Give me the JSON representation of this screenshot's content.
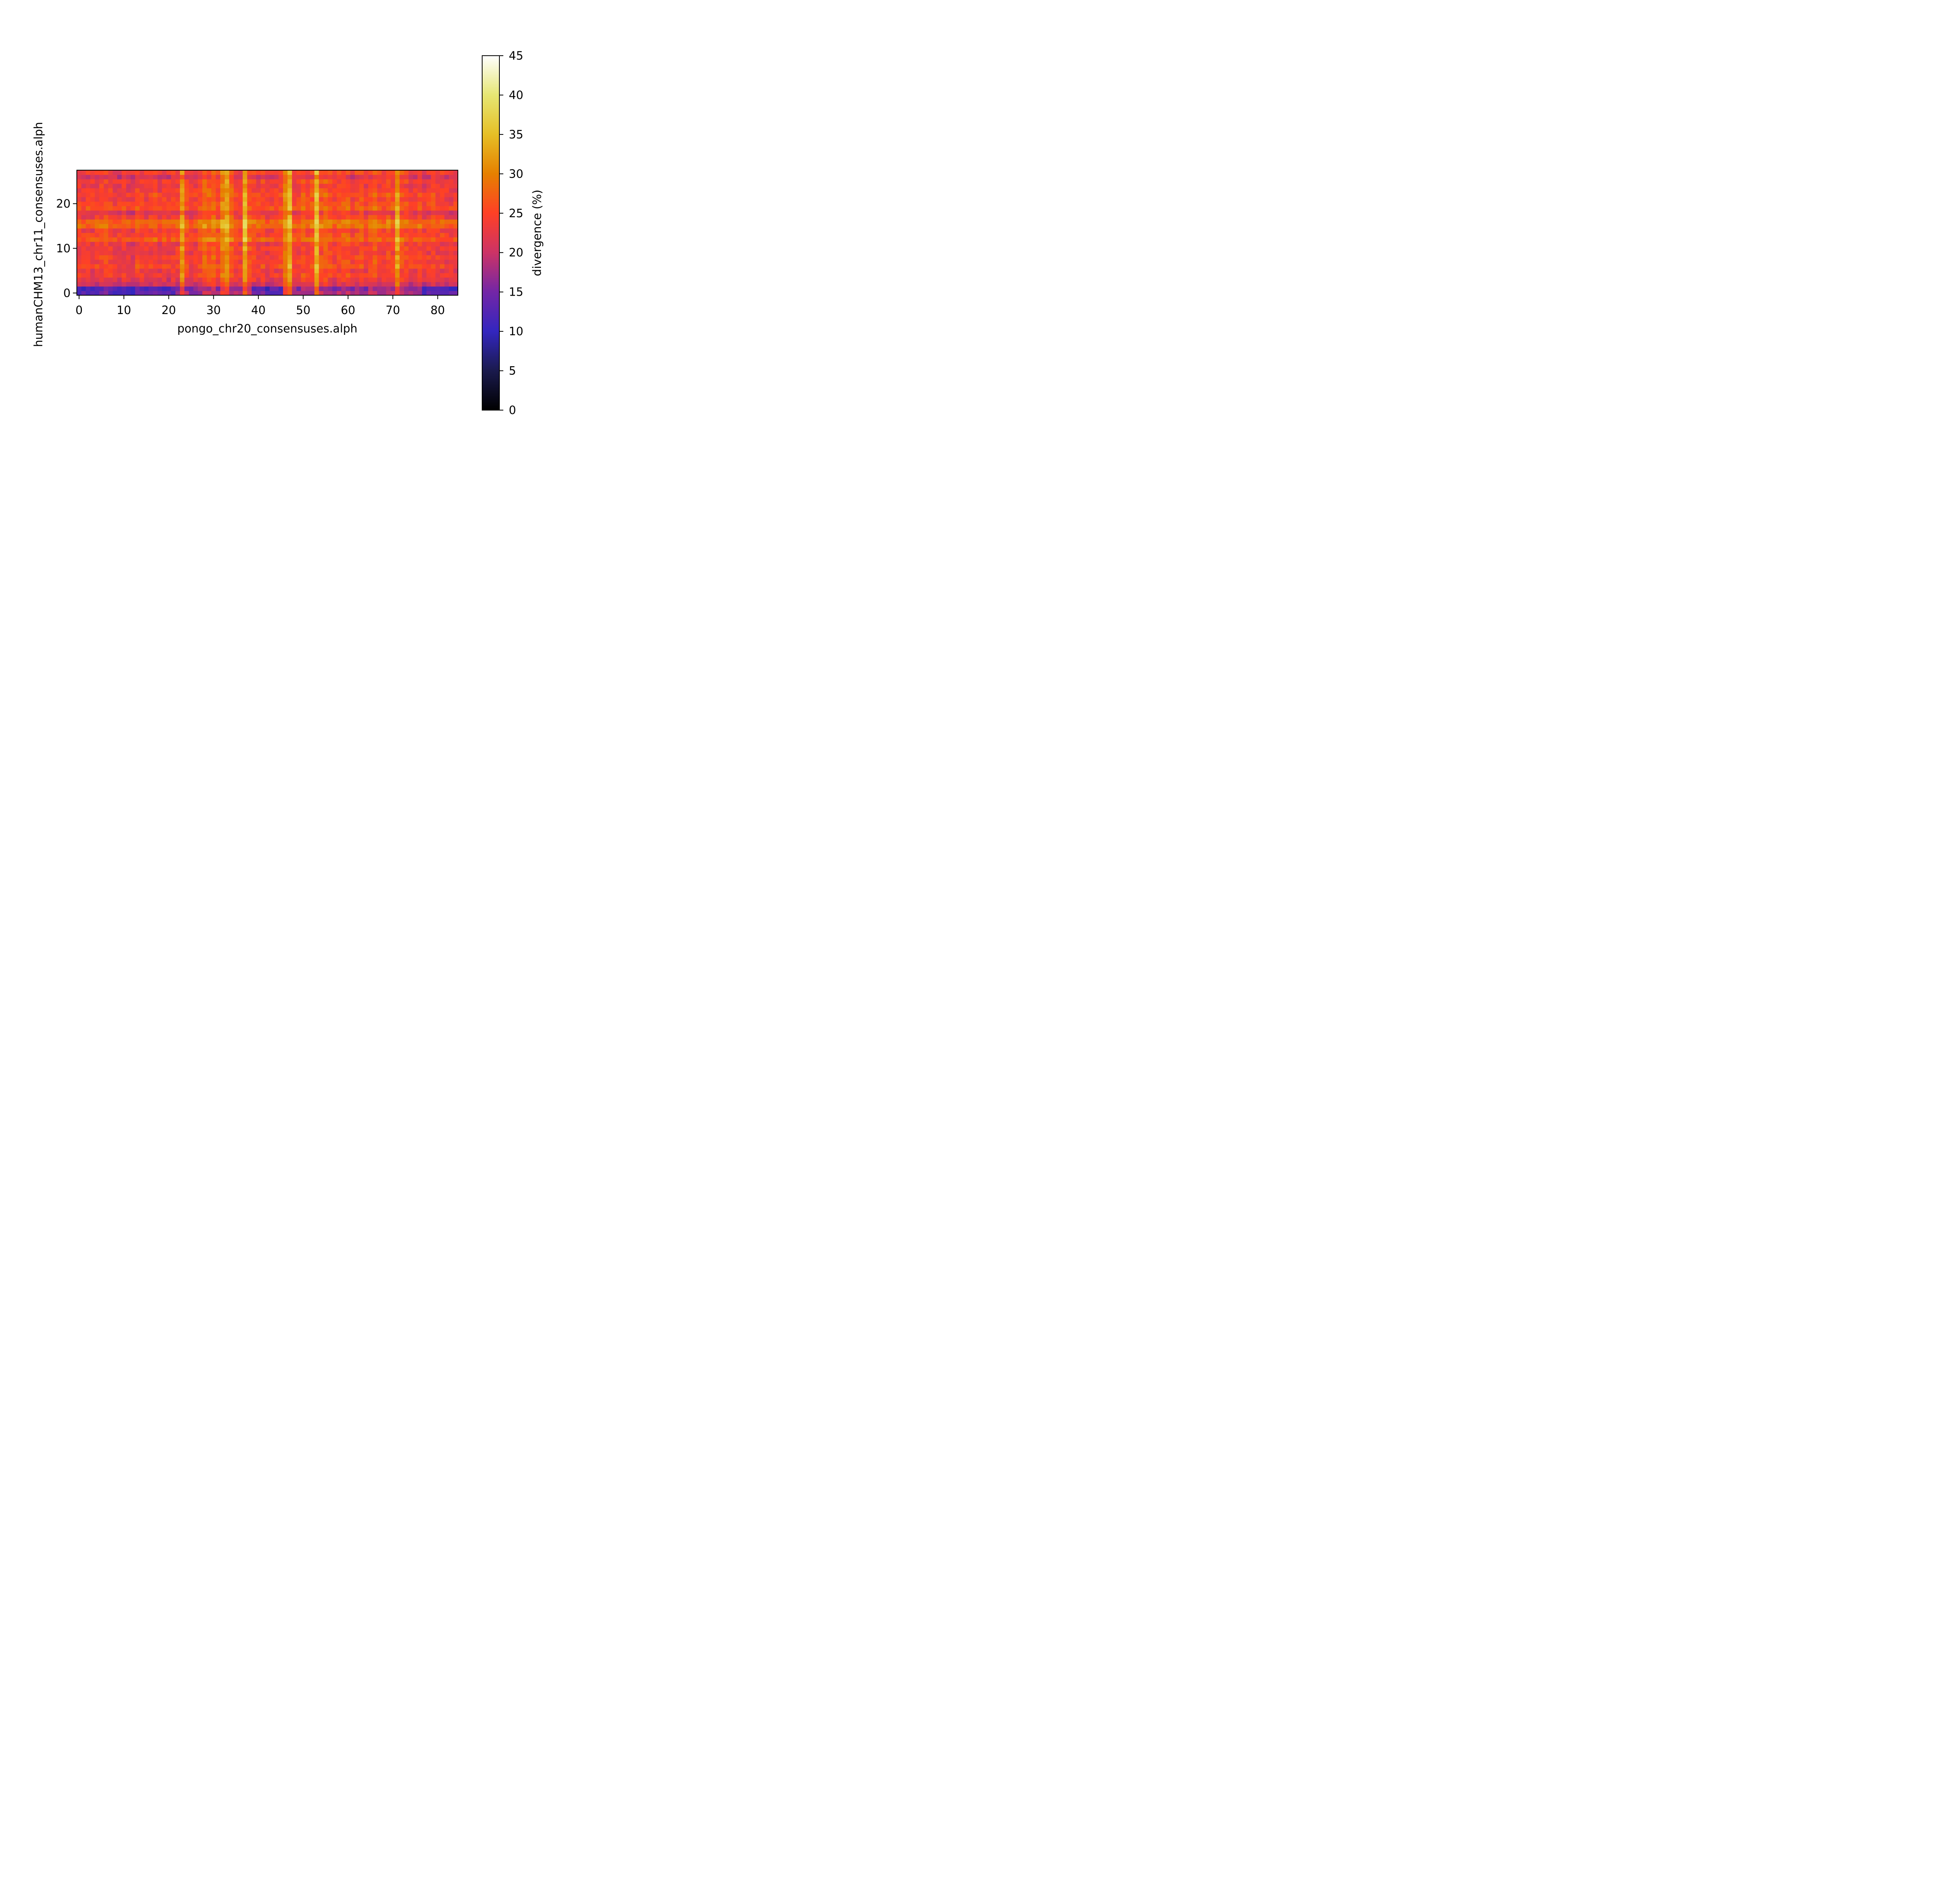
{
  "chart_data": {
    "type": "heatmap",
    "xlabel": "pongo_chr20_consensuses.alph",
    "ylabel": "humanCHM13_chr11_consensuses.alph",
    "colorbar_label": "divergence (%)",
    "colormap": "CMRmap",
    "colorbar_stops": [
      {
        "value": 0,
        "color": "#000000"
      },
      {
        "value": 5,
        "color": "#1a1a4d"
      },
      {
        "value": 10,
        "color": "#3326bf"
      },
      {
        "value": 15,
        "color": "#7326a6"
      },
      {
        "value": 20,
        "color": "#cc3366"
      },
      {
        "value": 25,
        "color": "#ff4026"
      },
      {
        "value": 30,
        "color": "#e68000"
      },
      {
        "value": 35,
        "color": "#e6bf26"
      },
      {
        "value": 40,
        "color": "#e6e673"
      },
      {
        "value": 45,
        "color": "#ffffff"
      }
    ],
    "n_cols": 85,
    "n_rows": 28,
    "value_range": [
      0,
      45
    ],
    "x_ticks": [
      0,
      10,
      20,
      30,
      40,
      50,
      60,
      70,
      80
    ],
    "y_ticks": [
      0,
      10,
      20
    ],
    "colorbar_ticks": [
      0,
      5,
      10,
      15,
      20,
      25,
      30,
      35,
      40,
      45
    ],
    "xlim": [
      -0.5,
      84.5
    ],
    "ylim": [
      -0.5,
      27.5
    ],
    "grid": false,
    "base_level": 24,
    "row_offsets": [
      -7,
      -8,
      -4,
      -2,
      0,
      -1,
      1,
      0,
      0,
      -1,
      0,
      -1,
      3,
      1,
      0,
      4,
      4,
      0,
      -2,
      2,
      1,
      0,
      1,
      0,
      -1,
      0,
      -3,
      0
    ],
    "col_offsets": [
      0,
      -1,
      0,
      -1,
      0,
      1,
      1,
      0,
      -1,
      -1,
      0,
      -1,
      -2,
      1,
      0,
      -1,
      0,
      1,
      -1,
      0,
      -1,
      0,
      0,
      6,
      1,
      -1,
      0,
      1,
      4,
      3,
      4,
      1,
      6,
      7,
      3,
      1,
      0,
      8,
      2,
      1,
      0,
      1,
      -1,
      0,
      0,
      1,
      6,
      8,
      0,
      0,
      2,
      1,
      2,
      9,
      2,
      3,
      2,
      0,
      1,
      2,
      2,
      0,
      1,
      2,
      0,
      2,
      3,
      1,
      0,
      2,
      1,
      7,
      2,
      1,
      0,
      0,
      1,
      -1,
      0,
      1,
      0,
      0,
      -1,
      -1,
      -1
    ],
    "hot_cols": [
      23,
      33,
      37,
      47,
      53,
      71
    ],
    "dark_rows_low_cols": {
      "rows": [
        0,
        1
      ],
      "delta": -7
    }
  }
}
